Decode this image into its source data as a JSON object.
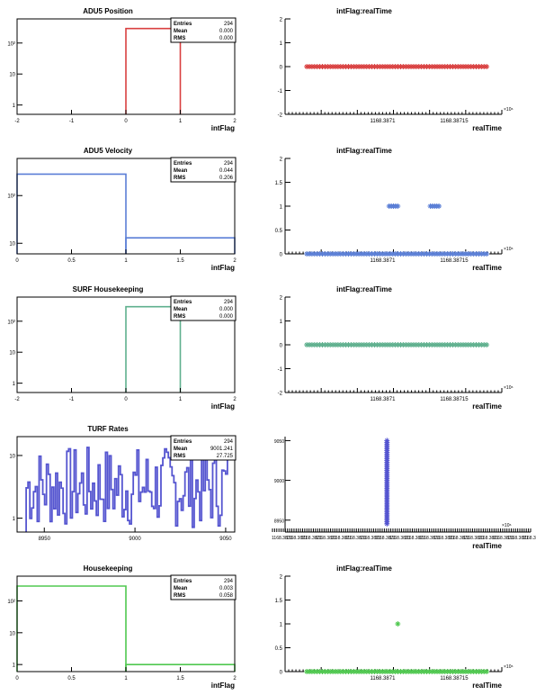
{
  "colors": {
    "red": "#d94040",
    "blue": "#5b7fd6",
    "teal": "#5fb08e",
    "purple": "#5555d0",
    "green": "#50c850",
    "axis": "#000000"
  },
  "chart_data": [
    {
      "type": "histogram",
      "color": "red",
      "title": "ADU5 Position",
      "xlabel": "intFlag",
      "xlim": [
        -2,
        2
      ],
      "log_y": true,
      "ylim": [
        0.5,
        600
      ],
      "x_ticks": [
        "-2",
        "-1",
        "0",
        "1",
        "2"
      ],
      "y_ticks": [
        {
          "v": 100,
          "label": "10²"
        },
        {
          "v": 10,
          "label": "10"
        },
        {
          "v": 1,
          "label": "1"
        }
      ],
      "steps": [
        [
          0,
          1,
          294
        ]
      ],
      "stats": {
        "entries": "294",
        "mean": "0.000",
        "rms": "0.000"
      }
    },
    {
      "type": "scatter",
      "color": "red",
      "title": "intFlag:realTime",
      "xlabel": "realTime",
      "ylim": [
        -2,
        2
      ],
      "y_ticks": [
        {
          "v": 2,
          "label": "2"
        },
        {
          "v": 1,
          "label": "1"
        },
        {
          "v": 0,
          "label": "0"
        },
        {
          "v": -1,
          "label": "-1"
        },
        {
          "v": -2,
          "label": "-2"
        }
      ],
      "x_ticks": [
        {
          "f": 0.45,
          "label": "1168.3871"
        },
        {
          "f": 0.78,
          "label": "1168.38715"
        }
      ],
      "x_exponent": "×10⁶",
      "points": [
        {
          "x_from": 0.1,
          "x_to": 0.93,
          "y": 0,
          "n": 70
        }
      ]
    },
    {
      "type": "histogram",
      "color": "blue",
      "title": "ADU5 Velocity",
      "xlabel": "intFlag",
      "xlim": [
        0,
        2
      ],
      "log_y": true,
      "ylim": [
        6,
        600
      ],
      "x_ticks": [
        "0",
        "0.5",
        "1",
        "1.5",
        "2"
      ],
      "y_ticks": [
        {
          "v": 100,
          "label": "10²"
        },
        {
          "v": 10,
          "label": "10"
        }
      ],
      "steps": [
        [
          0,
          1,
          281
        ],
        [
          1,
          2,
          13
        ]
      ],
      "stats": {
        "entries": "294",
        "mean": "0.044",
        "rms": "0.206"
      }
    },
    {
      "type": "scatter",
      "color": "blue",
      "title": "intFlag:realTime",
      "xlabel": "realTime",
      "ylim": [
        0,
        2
      ],
      "y_ticks": [
        {
          "v": 2,
          "label": "2"
        },
        {
          "v": 1.5,
          "label": "1.5"
        },
        {
          "v": 1,
          "label": "1"
        },
        {
          "v": 0.5,
          "label": "0.5"
        },
        {
          "v": 0,
          "label": "0"
        }
      ],
      "x_ticks": [
        {
          "f": 0.45,
          "label": "1168.3871"
        },
        {
          "f": 0.78,
          "label": "1168.38715"
        }
      ],
      "x_exponent": "×10⁶",
      "points": [
        {
          "x_from": 0.1,
          "x_to": 0.93,
          "y": 0,
          "n": 70
        },
        {
          "x_from": 0.48,
          "x_to": 0.52,
          "y": 1,
          "n": 5
        },
        {
          "x_from": 0.67,
          "x_to": 0.71,
          "y": 1,
          "n": 5
        }
      ]
    },
    {
      "type": "histogram",
      "color": "teal",
      "title": "SURF Housekeeping",
      "xlabel": "intFlag",
      "xlim": [
        -2,
        2
      ],
      "log_y": true,
      "ylim": [
        0.5,
        600
      ],
      "x_ticks": [
        "-2",
        "-1",
        "0",
        "1",
        "2"
      ],
      "y_ticks": [
        {
          "v": 100,
          "label": "10²"
        },
        {
          "v": 10,
          "label": "10"
        },
        {
          "v": 1,
          "label": "1"
        }
      ],
      "steps": [
        [
          0,
          1,
          294
        ]
      ],
      "stats": {
        "entries": "294",
        "mean": "0.000",
        "rms": "0.000"
      }
    },
    {
      "type": "scatter",
      "color": "teal",
      "title": "intFlag:realTime",
      "xlabel": "realTime",
      "ylim": [
        -2,
        2
      ],
      "y_ticks": [
        {
          "v": 2,
          "label": "2"
        },
        {
          "v": 1,
          "label": "1"
        },
        {
          "v": 0,
          "label": "0"
        },
        {
          "v": -1,
          "label": "-1"
        },
        {
          "v": -2,
          "label": "-2"
        }
      ],
      "x_ticks": [
        {
          "f": 0.45,
          "label": "1168.3871"
        },
        {
          "f": 0.78,
          "label": "1168.38715"
        }
      ],
      "x_exponent": "×10⁶",
      "points": [
        {
          "x_from": 0.1,
          "x_to": 0.93,
          "y": 0,
          "n": 70
        }
      ]
    },
    {
      "type": "histogram",
      "color": "purple",
      "title": "TURF Rates",
      "xlabel": "",
      "xlim": [
        8935,
        9055
      ],
      "log_y": true,
      "ylim": [
        0.6,
        20
      ],
      "x_ticks_pos": [
        {
          "v": 8950,
          "label": "8950"
        },
        {
          "v": 9000,
          "label": "9000"
        },
        {
          "v": 9050,
          "label": "9050"
        }
      ],
      "y_ticks": [
        {
          "v": 10,
          "label": "10"
        },
        {
          "v": 1,
          "label": "1"
        }
      ],
      "noise": {
        "from": 8940,
        "to": 9052,
        "nbins": 110,
        "seed": 7
      },
      "stats": {
        "entries": "294",
        "mean": "9001.241",
        "rms": "27.725"
      }
    },
    {
      "type": "scatter_turf",
      "color": "purple",
      "title": "",
      "xlabel": "realTime",
      "ylim": [
        8935,
        9055
      ],
      "y_ticks": [
        {
          "v": 9050,
          "label": "9050"
        },
        {
          "v": 9000,
          "label": "9000"
        },
        {
          "v": 8950,
          "label": "8950"
        }
      ],
      "x_exponent": "×10⁶",
      "spike": {
        "x": 0.47,
        "y_from": 8944,
        "y_to": 9050
      },
      "tick_text": "1168.3871"
    },
    {
      "type": "histogram",
      "color": "green",
      "title": "Housekeeping",
      "xlabel": "intFlag",
      "xlim": [
        0,
        2
      ],
      "log_y": true,
      "ylim": [
        0.6,
        600
      ],
      "x_ticks": [
        "0",
        "0.5",
        "1",
        "1.5",
        "2"
      ],
      "y_ticks": [
        {
          "v": 100,
          "label": "10²"
        },
        {
          "v": 10,
          "label": "10"
        },
        {
          "v": 1,
          "label": "1"
        }
      ],
      "steps": [
        [
          0,
          1,
          293
        ],
        [
          1,
          2,
          1
        ]
      ],
      "stats": {
        "entries": "294",
        "mean": "0.003",
        "rms": "0.058"
      }
    },
    {
      "type": "scatter",
      "color": "green",
      "title": "intFlag:realTime",
      "xlabel": "realTime",
      "ylim": [
        0,
        2
      ],
      "y_ticks": [
        {
          "v": 2,
          "label": "2"
        },
        {
          "v": 1.5,
          "label": "1.5"
        },
        {
          "v": 1,
          "label": "1"
        },
        {
          "v": 0.5,
          "label": "0.5"
        },
        {
          "v": 0,
          "label": "0"
        }
      ],
      "x_ticks": [
        {
          "f": 0.45,
          "label": "1168.3871"
        },
        {
          "f": 0.78,
          "label": "1168.38715"
        }
      ],
      "x_exponent": "×10⁶",
      "points": [
        {
          "x_from": 0.1,
          "x_to": 0.93,
          "y": 0,
          "n": 70
        },
        {
          "x_from": 0.52,
          "x_to": 0.53,
          "y": 1,
          "n": 1
        }
      ]
    }
  ],
  "stats_labels": {
    "entries": "Entries",
    "mean": "Mean",
    "rms": "RMS"
  }
}
